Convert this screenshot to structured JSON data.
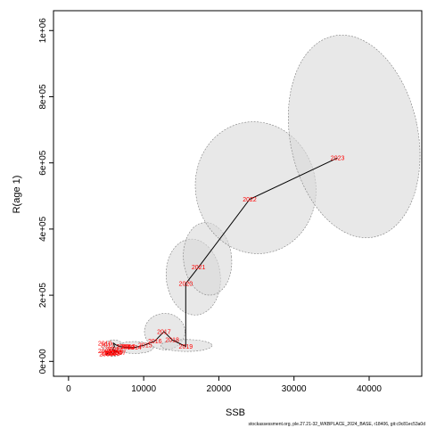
{
  "chart_data": {
    "type": "scatter",
    "xlabel": "SSB",
    "ylabel": "R(age 1)",
    "xlim": [
      -2000,
      47000
    ],
    "ylim": [
      -45000,
      1060000
    ],
    "x_ticks": [
      0,
      10000,
      20000,
      30000,
      40000
    ],
    "y_ticks": [
      0,
      200000,
      400000,
      600000,
      800000,
      1000000
    ],
    "x_tick_labels": [
      "0",
      "10000",
      "20000",
      "30000",
      "40000"
    ],
    "y_tick_labels": [
      "0e+00",
      "2e+05",
      "4e+05",
      "6e+05",
      "8e+05",
      "1e+06"
    ],
    "colors": {
      "year_label": "#ff0000",
      "line": "#000000",
      "ellipse_fill": "#d9d9d9",
      "ellipse_stroke": "#7f7f7f"
    },
    "points": [
      {
        "year": "2000",
        "ssb": 5000,
        "rec": 22000
      },
      {
        "year": "2001",
        "ssb": 5300,
        "rec": 25000
      },
      {
        "year": "2002",
        "ssb": 5600,
        "rec": 27000
      },
      {
        "year": "2003",
        "ssb": 5900,
        "rec": 24000
      },
      {
        "year": "2004",
        "ssb": 6200,
        "rec": 28000
      },
      {
        "year": "2005",
        "ssb": 6000,
        "rec": 32000
      },
      {
        "year": "2006",
        "ssb": 6400,
        "rec": 30000
      },
      {
        "year": "2007",
        "ssb": 6700,
        "rec": 26000
      },
      {
        "year": "2008",
        "ssb": 5900,
        "rec": 36000
      },
      {
        "year": "2009",
        "ssb": 6100,
        "rec": 45000
      },
      {
        "year": "2010",
        "ssb": 6000,
        "rec": 55000
      },
      {
        "year": "2011",
        "ssb": 6300,
        "rec": 50000
      },
      {
        "year": "2012",
        "ssb": 6800,
        "rec": 45000
      },
      {
        "year": "2013",
        "ssb": 7800,
        "rec": 42000
      },
      {
        "year": "2014",
        "ssb": 8800,
        "rec": 42000
      },
      {
        "year": "2015",
        "ssb": 10200,
        "rec": 50000
      },
      {
        "year": "2016",
        "ssb": 11500,
        "rec": 62000
      },
      {
        "year": "2017",
        "ssb": 12700,
        "rec": 90000
      },
      {
        "year": "2018",
        "ssb": 13800,
        "rec": 65000
      },
      {
        "year": "2019",
        "ssb": 15600,
        "rec": 45000
      },
      {
        "year": "2020",
        "ssb": 15600,
        "rec": 235000
      },
      {
        "year": "2021",
        "ssb": 17300,
        "rec": 285000
      },
      {
        "year": "2022",
        "ssb": 24100,
        "rec": 490000
      },
      {
        "year": "2023",
        "ssb": 35800,
        "rec": 615000
      }
    ],
    "ellipses": [
      {
        "cx": 6000,
        "cy": 40000,
        "rx": 1400,
        "ry": 25000,
        "angle": 0
      },
      {
        "cx": 8800,
        "cy": 42000,
        "rx": 2500,
        "ry": 18000,
        "angle": 0
      },
      {
        "cx": 12800,
        "cy": 90000,
        "rx": 2700,
        "ry": 55000,
        "angle": 0
      },
      {
        "cx": 15700,
        "cy": 48000,
        "rx": 3400,
        "ry": 18000,
        "angle": 0
      },
      {
        "cx": 16600,
        "cy": 255000,
        "rx": 3600,
        "ry": 115000,
        "angle": 0.1
      },
      {
        "cx": 18500,
        "cy": 310000,
        "rx": 3200,
        "ry": 110000,
        "angle": 0.1
      },
      {
        "cx": 24900,
        "cy": 525000,
        "rx": 8000,
        "ry": 200000,
        "angle": 0.2
      },
      {
        "cx": 38000,
        "cy": 680000,
        "rx": 8500,
        "ry": 310000,
        "angle": 0.2
      }
    ],
    "label_positions": {
      "2005": "left",
      "2009": "right",
      "2010": "left",
      "2011": "left",
      "2012": "right"
    }
  },
  "footer": {
    "text": "stockassessment.org, ple.27.21-32_WKBPLACE_2024_BASE, r18406, git:c9c81ec53a0d"
  }
}
